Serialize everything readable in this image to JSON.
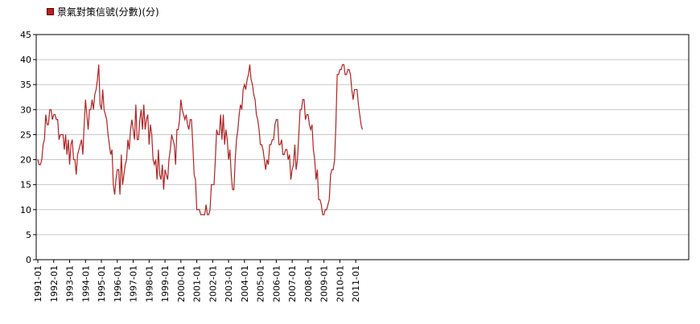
{
  "chart_data": {
    "type": "line",
    "title": "",
    "xlabel": "",
    "ylabel": "",
    "ylim": [
      0,
      45
    ],
    "yticks": [
      0,
      5,
      10,
      15,
      20,
      25,
      30,
      35,
      40,
      45
    ],
    "grid": true,
    "legend_position": "top-left",
    "x_tick_labels": [
      "1991-01",
      "1992-01",
      "1993-01",
      "1994-01",
      "1995-01",
      "1996-01",
      "1997-01",
      "1998-01",
      "1999-01",
      "2000-01",
      "2001-01",
      "2002-01",
      "2003-01",
      "2004-01",
      "2005-01",
      "2006-01",
      "2007-01",
      "2008-01",
      "2009-01",
      "2010-01",
      "2011-01"
    ],
    "x_start": "1991-01",
    "series": [
      {
        "name": "景氣對策信號(分數)(分)",
        "color": "#b22222",
        "values": [
          20,
          19,
          19,
          20,
          23,
          24,
          29,
          27,
          27,
          30,
          30,
          28,
          29,
          29,
          28,
          28,
          24,
          25,
          25,
          25,
          22,
          25,
          21,
          24,
          19,
          23,
          24,
          20,
          20,
          17,
          21,
          22,
          23,
          24,
          21,
          27,
          32,
          29,
          26,
          30,
          30,
          32,
          30,
          33,
          34,
          36,
          39,
          31,
          30,
          34,
          30,
          29,
          28,
          25,
          23,
          21,
          22,
          15,
          13,
          16,
          18,
          18,
          13,
          21,
          15,
          17,
          19,
          20,
          24,
          22,
          26,
          28,
          26,
          24,
          31,
          24,
          24,
          28,
          30,
          26,
          31,
          26,
          28,
          29,
          23,
          27,
          25,
          20,
          19,
          20,
          16,
          22,
          17,
          16,
          19,
          14,
          18,
          17,
          16,
          20,
          22,
          25,
          24,
          23,
          19,
          26,
          26,
          28,
          32,
          30,
          29,
          28,
          29,
          27,
          26,
          28,
          28,
          23,
          17,
          16,
          10,
          10,
          10,
          9,
          9,
          9,
          9,
          11,
          9,
          9,
          10,
          15,
          15,
          15,
          20,
          26,
          25,
          25,
          29,
          24,
          29,
          23,
          26,
          24,
          20,
          22,
          17,
          14,
          14,
          20,
          24,
          26,
          29,
          31,
          30,
          34,
          35,
          34,
          36,
          37,
          39,
          36,
          35,
          33,
          32,
          29,
          28,
          26,
          23,
          23,
          22,
          20,
          18,
          20,
          19,
          23,
          23,
          24,
          24,
          27,
          28,
          28,
          23,
          23,
          24,
          21,
          21,
          22,
          22,
          20,
          21,
          16,
          18,
          19,
          23,
          18,
          20,
          25,
          30,
          30,
          32,
          32,
          28,
          29,
          29,
          27,
          26,
          27,
          22,
          20,
          16,
          18,
          12,
          12,
          11,
          9,
          9,
          10,
          10,
          11,
          12,
          17,
          18,
          18,
          20,
          27,
          37,
          37,
          38,
          38,
          39,
          39,
          37,
          37,
          38,
          38,
          37,
          34,
          32,
          34,
          34,
          34,
          31,
          29,
          27,
          26
        ]
      }
    ]
  }
}
